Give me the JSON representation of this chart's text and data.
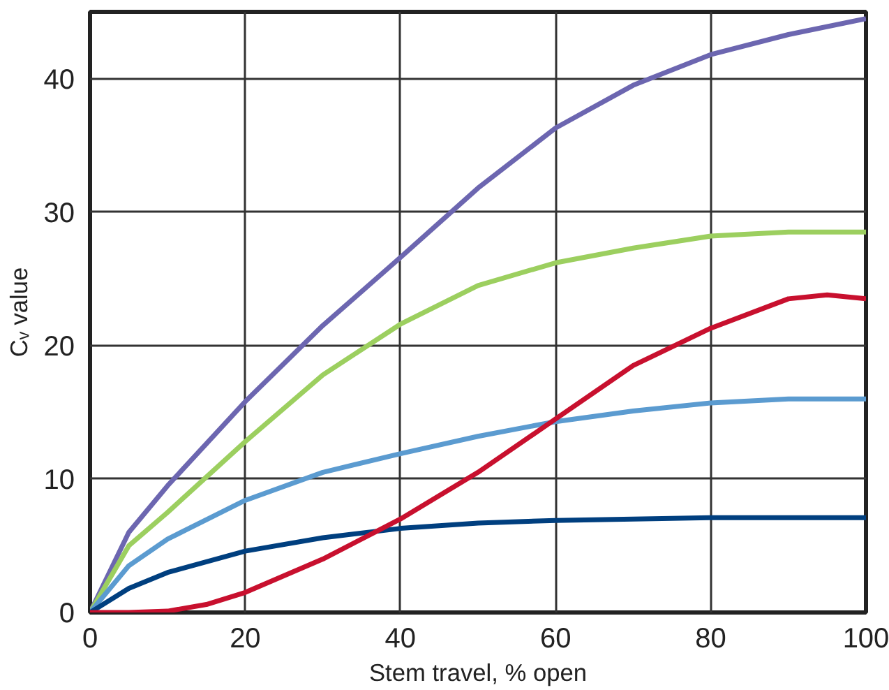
{
  "chart_data": {
    "type": "line",
    "xlabel": "Stem travel, % open",
    "ylabel": "Cᵥ value",
    "xlim": [
      0,
      100
    ],
    "ylim": [
      0,
      45
    ],
    "xticks": [
      0,
      20,
      40,
      60,
      80,
      100
    ],
    "yticks": [
      0,
      10,
      20,
      30,
      40
    ],
    "grid": true,
    "line_style": "solid",
    "series": [
      {
        "color": "#6c66b0",
        "x": [
          0,
          5,
          10,
          20,
          30,
          40,
          50,
          60,
          70,
          80,
          90,
          100
        ],
        "values": [
          0,
          6,
          9.5,
          15.8,
          21.5,
          26.6,
          31.8,
          36.3,
          39.5,
          41.8,
          43.3,
          44.5
        ]
      },
      {
        "color": "#9ccf5f",
        "x": [
          0,
          5,
          10,
          20,
          30,
          40,
          50,
          60,
          70,
          80,
          90,
          100
        ],
        "values": [
          0,
          5,
          7.5,
          12.8,
          17.8,
          21.6,
          24.5,
          26.2,
          27.3,
          28.2,
          28.5,
          28.5
        ]
      },
      {
        "color": "#5b9bd0",
        "x": [
          0,
          5,
          10,
          20,
          30,
          40,
          50,
          60,
          70,
          80,
          90,
          100
        ],
        "values": [
          0,
          3.5,
          5.5,
          8.4,
          10.5,
          11.9,
          13.2,
          14.3,
          15.1,
          15.7,
          16,
          16
        ]
      },
      {
        "color": "#003f7f",
        "x": [
          0,
          5,
          10,
          20,
          30,
          40,
          50,
          60,
          70,
          80,
          90,
          100
        ],
        "values": [
          0,
          1.8,
          3,
          4.6,
          5.6,
          6.3,
          6.7,
          6.9,
          7,
          7.1,
          7.1,
          7.1
        ]
      },
      {
        "color": "#c8102e",
        "x": [
          0,
          5,
          10,
          15,
          20,
          30,
          40,
          50,
          60,
          70,
          80,
          90,
          95,
          100
        ],
        "values": [
          0,
          0,
          0.1,
          0.6,
          1.5,
          4,
          7,
          10.5,
          14.5,
          18.5,
          21.3,
          23.5,
          23.8,
          23.5
        ]
      }
    ]
  }
}
